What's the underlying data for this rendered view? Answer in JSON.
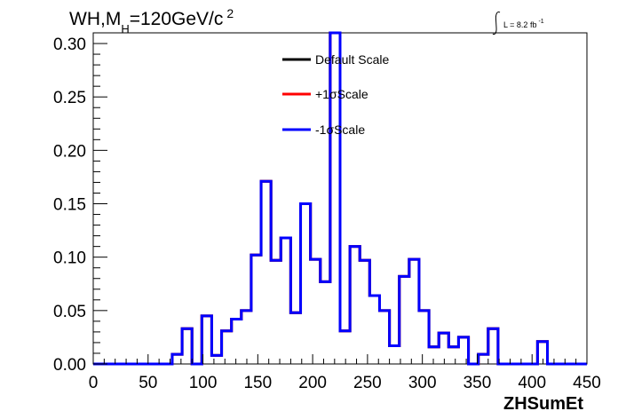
{
  "chart_data": {
    "type": "line",
    "title_main": "WH,M",
    "title_sub": "H",
    "title_rest": "=120GeV/c",
    "title_sup": "2",
    "lumi_prefix": "L = 8.2 fb",
    "lumi_sup": "-1",
    "xlabel": "ZHSumEt",
    "xlim": [
      0,
      450
    ],
    "ylim": [
      0,
      0.31
    ],
    "x_ticks": [
      "0",
      "50",
      "100",
      "150",
      "200",
      "250",
      "300",
      "350",
      "400",
      "450"
    ],
    "y_ticks": [
      "0.00",
      "0.05",
      "0.10",
      "0.15",
      "0.20",
      "0.25",
      "0.30"
    ],
    "bin_edges": [
      0,
      9,
      18,
      27,
      36,
      45,
      54,
      63,
      72,
      81,
      90,
      99,
      108,
      117,
      126,
      135,
      144,
      153,
      162,
      171,
      180,
      189,
      198,
      207,
      216,
      225,
      234,
      243,
      252,
      261,
      270,
      279,
      288,
      297,
      306,
      315,
      324,
      333,
      342,
      351,
      360,
      369,
      378,
      387,
      396,
      405,
      414,
      423,
      432,
      441,
      450
    ],
    "series": [
      {
        "name": "Default Scale",
        "color": "#000000",
        "values": [
          0,
          0,
          0,
          0,
          0,
          0,
          0,
          0,
          0.009,
          0.033,
          0,
          0.045,
          0.008,
          0.031,
          0.042,
          0.05,
          0.102,
          0.171,
          0.097,
          0.118,
          0.048,
          0.15,
          0.098,
          0.077,
          0.31,
          0.031,
          0.11,
          0.097,
          0.064,
          0.05,
          0.017,
          0.082,
          0.098,
          0.05,
          0.016,
          0.029,
          0.016,
          0.025,
          0,
          0.009,
          0.033,
          0,
          0,
          0,
          0,
          0.021,
          0,
          0,
          0,
          0
        ]
      },
      {
        "name": "+1σScale",
        "color": "#ff0000",
        "values": [
          0,
          0,
          0,
          0,
          0,
          0,
          0,
          0,
          0.009,
          0.033,
          0,
          0.045,
          0.008,
          0.031,
          0.042,
          0.05,
          0.102,
          0.171,
          0.097,
          0.118,
          0.048,
          0.15,
          0.098,
          0.077,
          0.31,
          0.031,
          0.11,
          0.097,
          0.064,
          0.05,
          0.017,
          0.082,
          0.098,
          0.05,
          0.016,
          0.029,
          0.016,
          0.025,
          0,
          0.009,
          0.033,
          0,
          0,
          0,
          0,
          0.021,
          0,
          0,
          0,
          0
        ]
      },
      {
        "name": "-1σScale",
        "color": "#0000ff",
        "values": [
          0,
          0,
          0,
          0,
          0,
          0,
          0,
          0,
          0.009,
          0.033,
          0,
          0.045,
          0.008,
          0.031,
          0.042,
          0.05,
          0.102,
          0.171,
          0.097,
          0.118,
          0.048,
          0.15,
          0.098,
          0.077,
          0.31,
          0.031,
          0.11,
          0.097,
          0.064,
          0.05,
          0.017,
          0.082,
          0.098,
          0.05,
          0.016,
          0.029,
          0.016,
          0.025,
          0,
          0.009,
          0.033,
          0,
          0,
          0,
          0,
          0.021,
          0,
          0,
          0,
          0
        ]
      }
    ],
    "legend_position": "top-center",
    "grid": false
  }
}
